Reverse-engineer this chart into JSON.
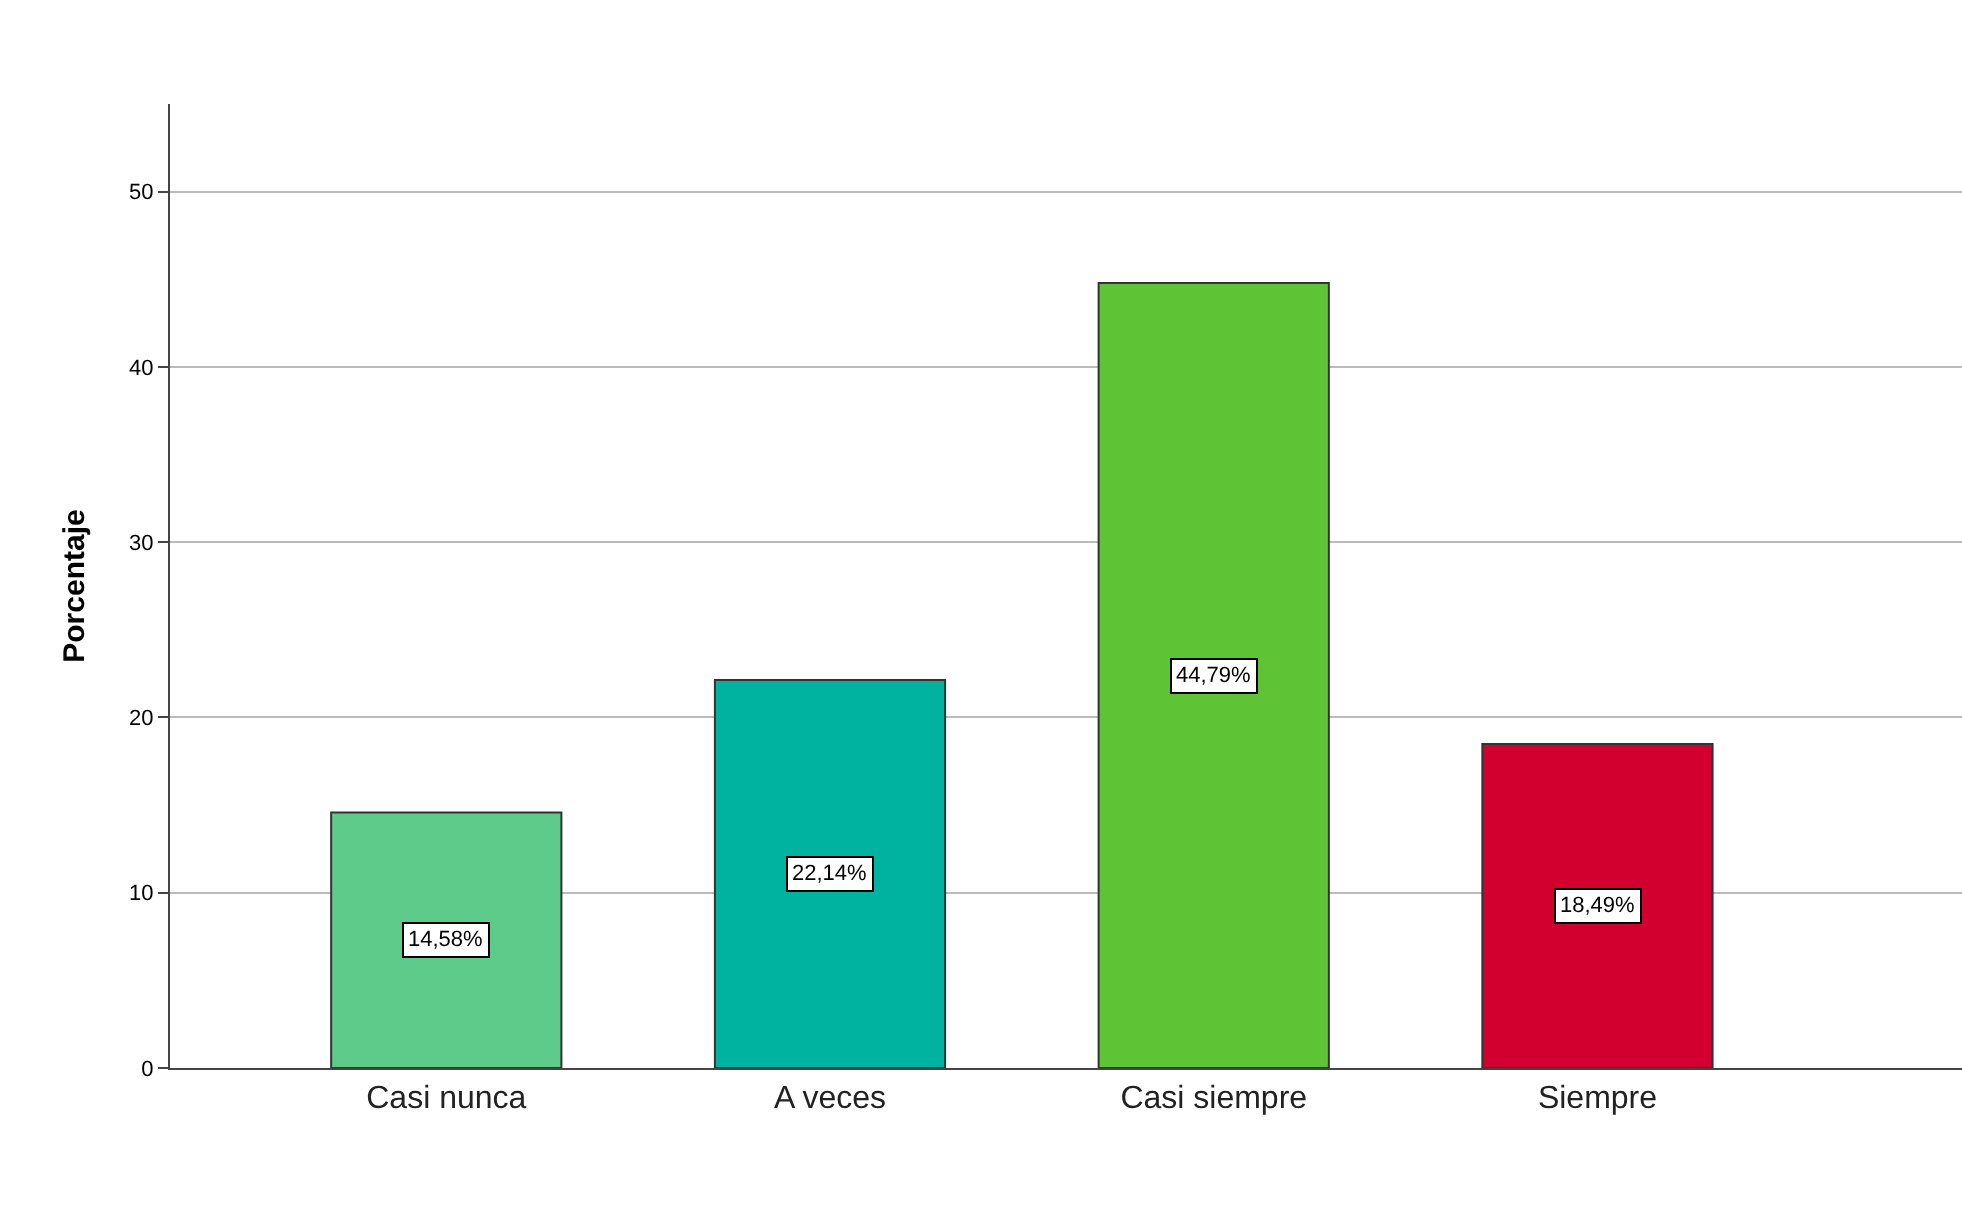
{
  "chart_data": {
    "type": "bar",
    "ylabel": "Porcentaje",
    "categories": [
      "Casi nunca",
      "A veces",
      "Casi siempre",
      "Siempre"
    ],
    "values": [
      14.58,
      22.14,
      44.79,
      18.49
    ],
    "colors": [
      "#5ecb8b",
      "#00b3a0",
      "#5ec435",
      "#d2002f"
    ],
    "value_labels": [
      "14,58%",
      "22,14%",
      "44,79%",
      "18,49%"
    ],
    "ylim": [
      0,
      55
    ],
    "yticks": [
      0,
      10,
      20,
      30,
      40,
      50
    ],
    "grid": "y"
  }
}
